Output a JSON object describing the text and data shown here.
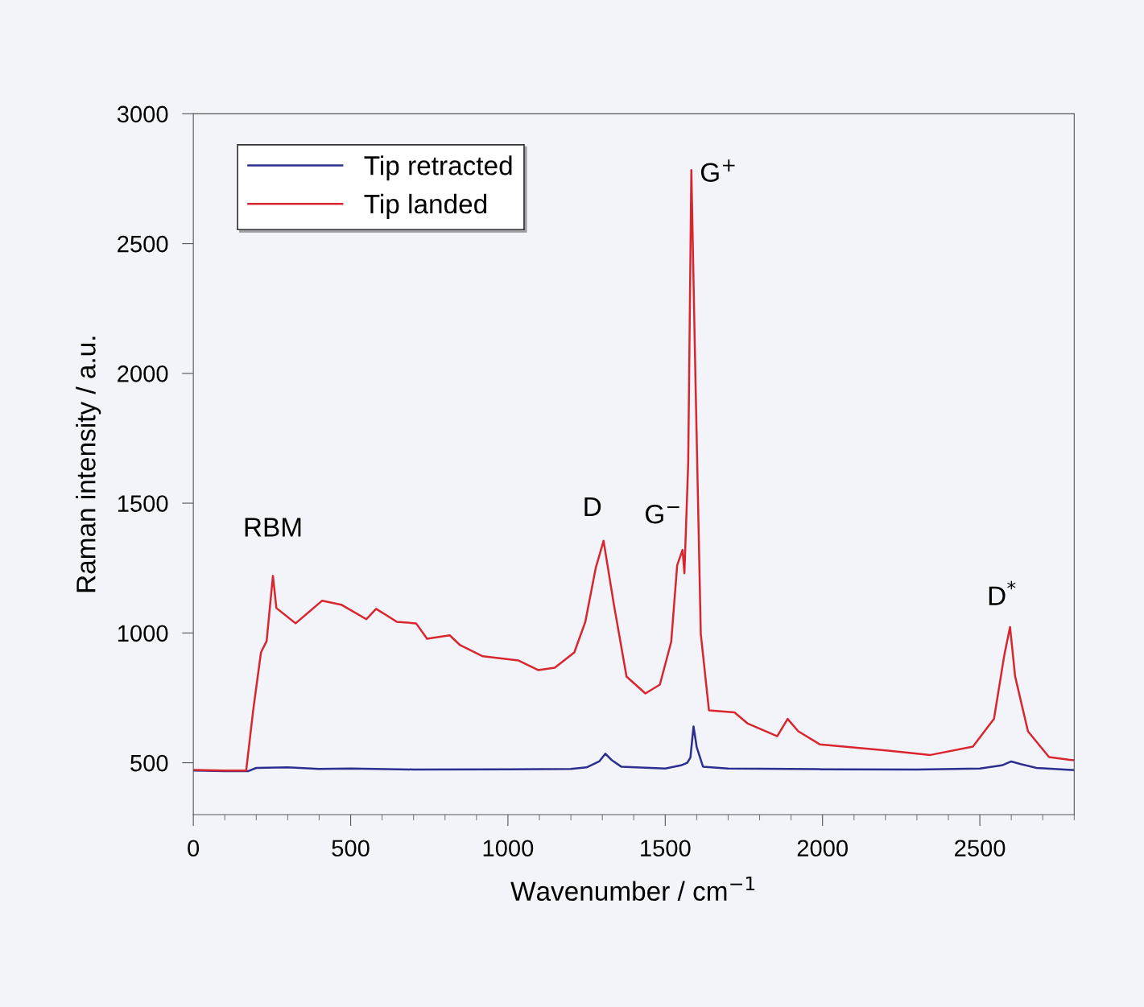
{
  "chart_data": {
    "type": "line",
    "xlabel": "Wavenumber / cm$^{−1}$",
    "ylabel": "Raman intensity / a.u.",
    "xlim": [
      0,
      2800
    ],
    "ylim": [
      300,
      3000
    ],
    "xticks": [
      0,
      500,
      1000,
      1500,
      2000,
      2500
    ],
    "yticks": [
      500,
      1000,
      1500,
      2000,
      2500,
      3000
    ],
    "grid": false,
    "legend": "top left",
    "marker": "none",
    "line_style": "solid",
    "series": [
      {
        "name": "Tip retracted",
        "color": "#2b2d8f",
        "x": [
          0,
          100,
          175,
          200,
          300,
          400,
          500,
          700,
          1000,
          1200,
          1250,
          1290,
          1310,
          1330,
          1360,
          1500,
          1550,
          1570,
          1580,
          1590,
          1600,
          1620,
          1700,
          2000,
          2300,
          2500,
          2570,
          2600,
          2630,
          2680,
          2800
        ],
        "values": [
          470,
          468,
          468,
          480,
          482,
          476,
          478,
          474,
          475,
          476,
          482,
          505,
          535,
          510,
          485,
          478,
          490,
          500,
          520,
          640,
          560,
          485,
          478,
          475,
          474,
          478,
          490,
          505,
          495,
          480,
          472
        ]
      },
      {
        "name": "Tip landed",
        "color": "#d9262e",
        "x": [
          0,
          100,
          168,
          190,
          215,
          233,
          253,
          264,
          325,
          409,
          470,
          550,
          581,
          647,
          708,
          743,
          815,
          848,
          920,
          1034,
          1096,
          1149,
          1211,
          1246,
          1279,
          1304,
          1336,
          1377,
          1437,
          1483,
          1519,
          1538,
          1555,
          1561,
          1573,
          1583,
          1596,
          1613,
          1639,
          1720,
          1761,
          1856,
          1889,
          1923,
          1991,
          2208,
          2343,
          2478,
          2545,
          2578,
          2596,
          2612,
          2653,
          2720,
          2782,
          2800
        ],
        "values": [
          472,
          470,
          470,
          700,
          925,
          969,
          1220,
          1096,
          1037,
          1124,
          1109,
          1053,
          1093,
          1043,
          1037,
          978,
          991,
          953,
          910,
          894,
          857,
          866,
          925,
          1043,
          1250,
          1355,
          1115,
          832,
          767,
          801,
          966,
          1261,
          1320,
          1230,
          1655,
          2783,
          1984,
          997,
          702,
          694,
          652,
          602,
          669,
          621,
          571,
          547,
          530,
          562,
          669,
          916,
          1023,
          834,
          621,
          522,
          512,
          510
        ]
      }
    ],
    "annotations": [
      {
        "text": "RBM",
        "x": 253,
        "y": 1220
      },
      {
        "text": "D",
        "x": 1304,
        "y": 1355
      },
      {
        "text": "G$^{−}$",
        "x": 1555,
        "y": 1320
      },
      {
        "text": "G$^{+}$",
        "x": 1583,
        "y": 2783
      },
      {
        "text": "D$^{*}$",
        "x": 2596,
        "y": 1023
      }
    ]
  }
}
